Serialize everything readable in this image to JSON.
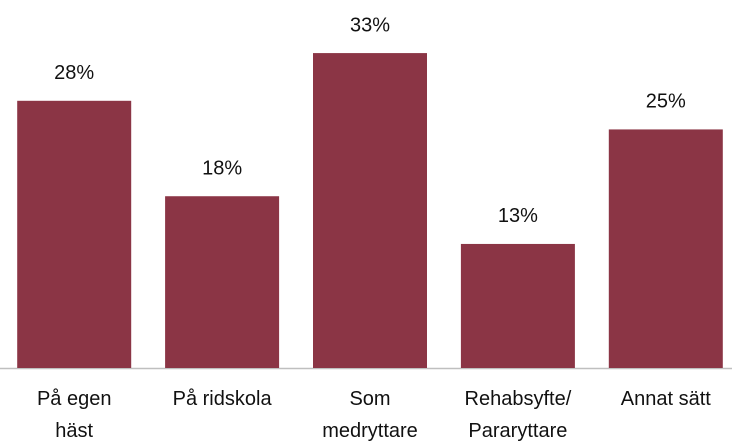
{
  "chart_data": {
    "type": "bar",
    "categories": [
      "På egen\nhäst",
      "På ridskola",
      "Som\nmedryttare",
      "Rehabsyfte/\nPararyttare",
      "Annat sätt"
    ],
    "values": [
      28,
      18,
      33,
      13,
      25
    ],
    "value_labels": [
      "28%",
      "18%",
      "33%",
      "13%",
      "25%"
    ],
    "color": "#8b3545",
    "ylim": [
      0,
      35
    ]
  }
}
